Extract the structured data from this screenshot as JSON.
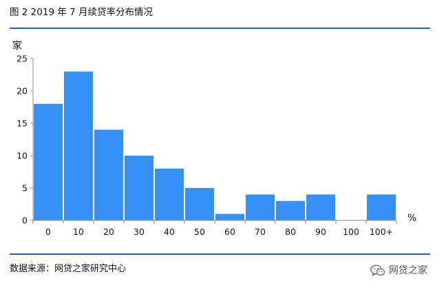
{
  "figure_title": "图 2 2019 年 7 月续贷率分布情况",
  "source": "数据来源：网贷之家研究中心",
  "watermark": "网贷之家",
  "watermark_icon": "wechat-icon",
  "chart_data": {
    "type": "bar",
    "title": "",
    "ylabel": "家",
    "xlabel": "%",
    "categories": [
      "0",
      "10",
      "20",
      "30",
      "40",
      "50",
      "60",
      "70",
      "80",
      "90",
      "100",
      "100+"
    ],
    "values": [
      18,
      23,
      14,
      10,
      8,
      5,
      1,
      4,
      3,
      4,
      0,
      4
    ],
    "ylim": [
      0,
      25
    ],
    "yticks": [
      0,
      5,
      10,
      15,
      20,
      25
    ],
    "bar_color": "#3691f6",
    "grid": false,
    "legend": "none"
  }
}
